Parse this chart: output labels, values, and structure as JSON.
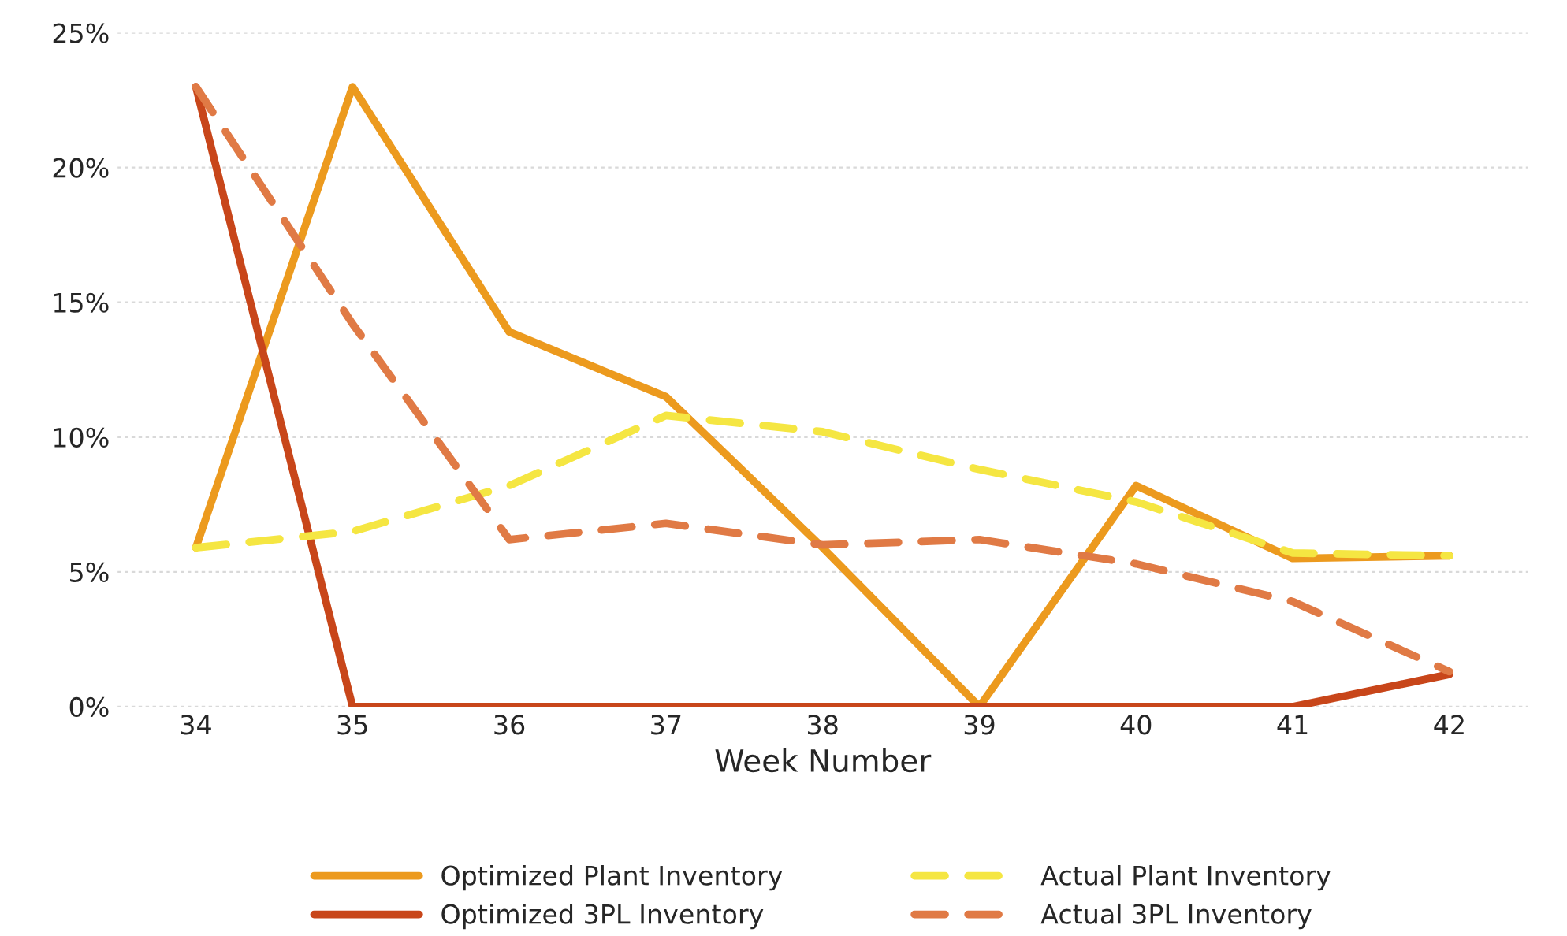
{
  "chart_data": {
    "type": "line",
    "xlabel": "Week Number",
    "categories": [
      "34",
      "35",
      "36",
      "37",
      "38",
      "39",
      "40",
      "41",
      "42"
    ],
    "series": [
      {
        "name": "Optimized Plant Inventory",
        "color": "#ec9a1e",
        "line_style": "solid",
        "values": [
          5.9,
          23.0,
          13.9,
          11.5,
          5.9,
          0,
          8.2,
          5.5,
          5.6
        ]
      },
      {
        "name": "Optimized 3PL Inventory",
        "color": "#c8461a",
        "line_style": "solid",
        "values": [
          23.0,
          0,
          0,
          0,
          0,
          0,
          0,
          0,
          1.2
        ]
      },
      {
        "name": "Actual Plant Inventory",
        "color": "#f5e642",
        "line_style": "dashed",
        "values": [
          5.9,
          6.5,
          8.2,
          10.8,
          10.2,
          8.8,
          7.6,
          5.7,
          5.6
        ]
      },
      {
        "name": "Actual 3PL Inventory",
        "color": "#e07a45",
        "line_style": "dashed",
        "values": [
          23.0,
          14.2,
          6.2,
          6.8,
          6.0,
          6.2,
          5.3,
          3.9,
          1.3
        ]
      }
    ],
    "ylim": [
      0,
      25
    ],
    "yticks": [
      {
        "value": 0,
        "label": "0%"
      },
      {
        "value": 5,
        "label": "5%"
      },
      {
        "value": 10,
        "label": "10%"
      },
      {
        "value": 15,
        "label": "15%"
      },
      {
        "value": 20,
        "label": "20%"
      },
      {
        "value": 25,
        "label": "25%"
      }
    ],
    "grid": "y",
    "legend": "bottom",
    "marker": "none"
  }
}
